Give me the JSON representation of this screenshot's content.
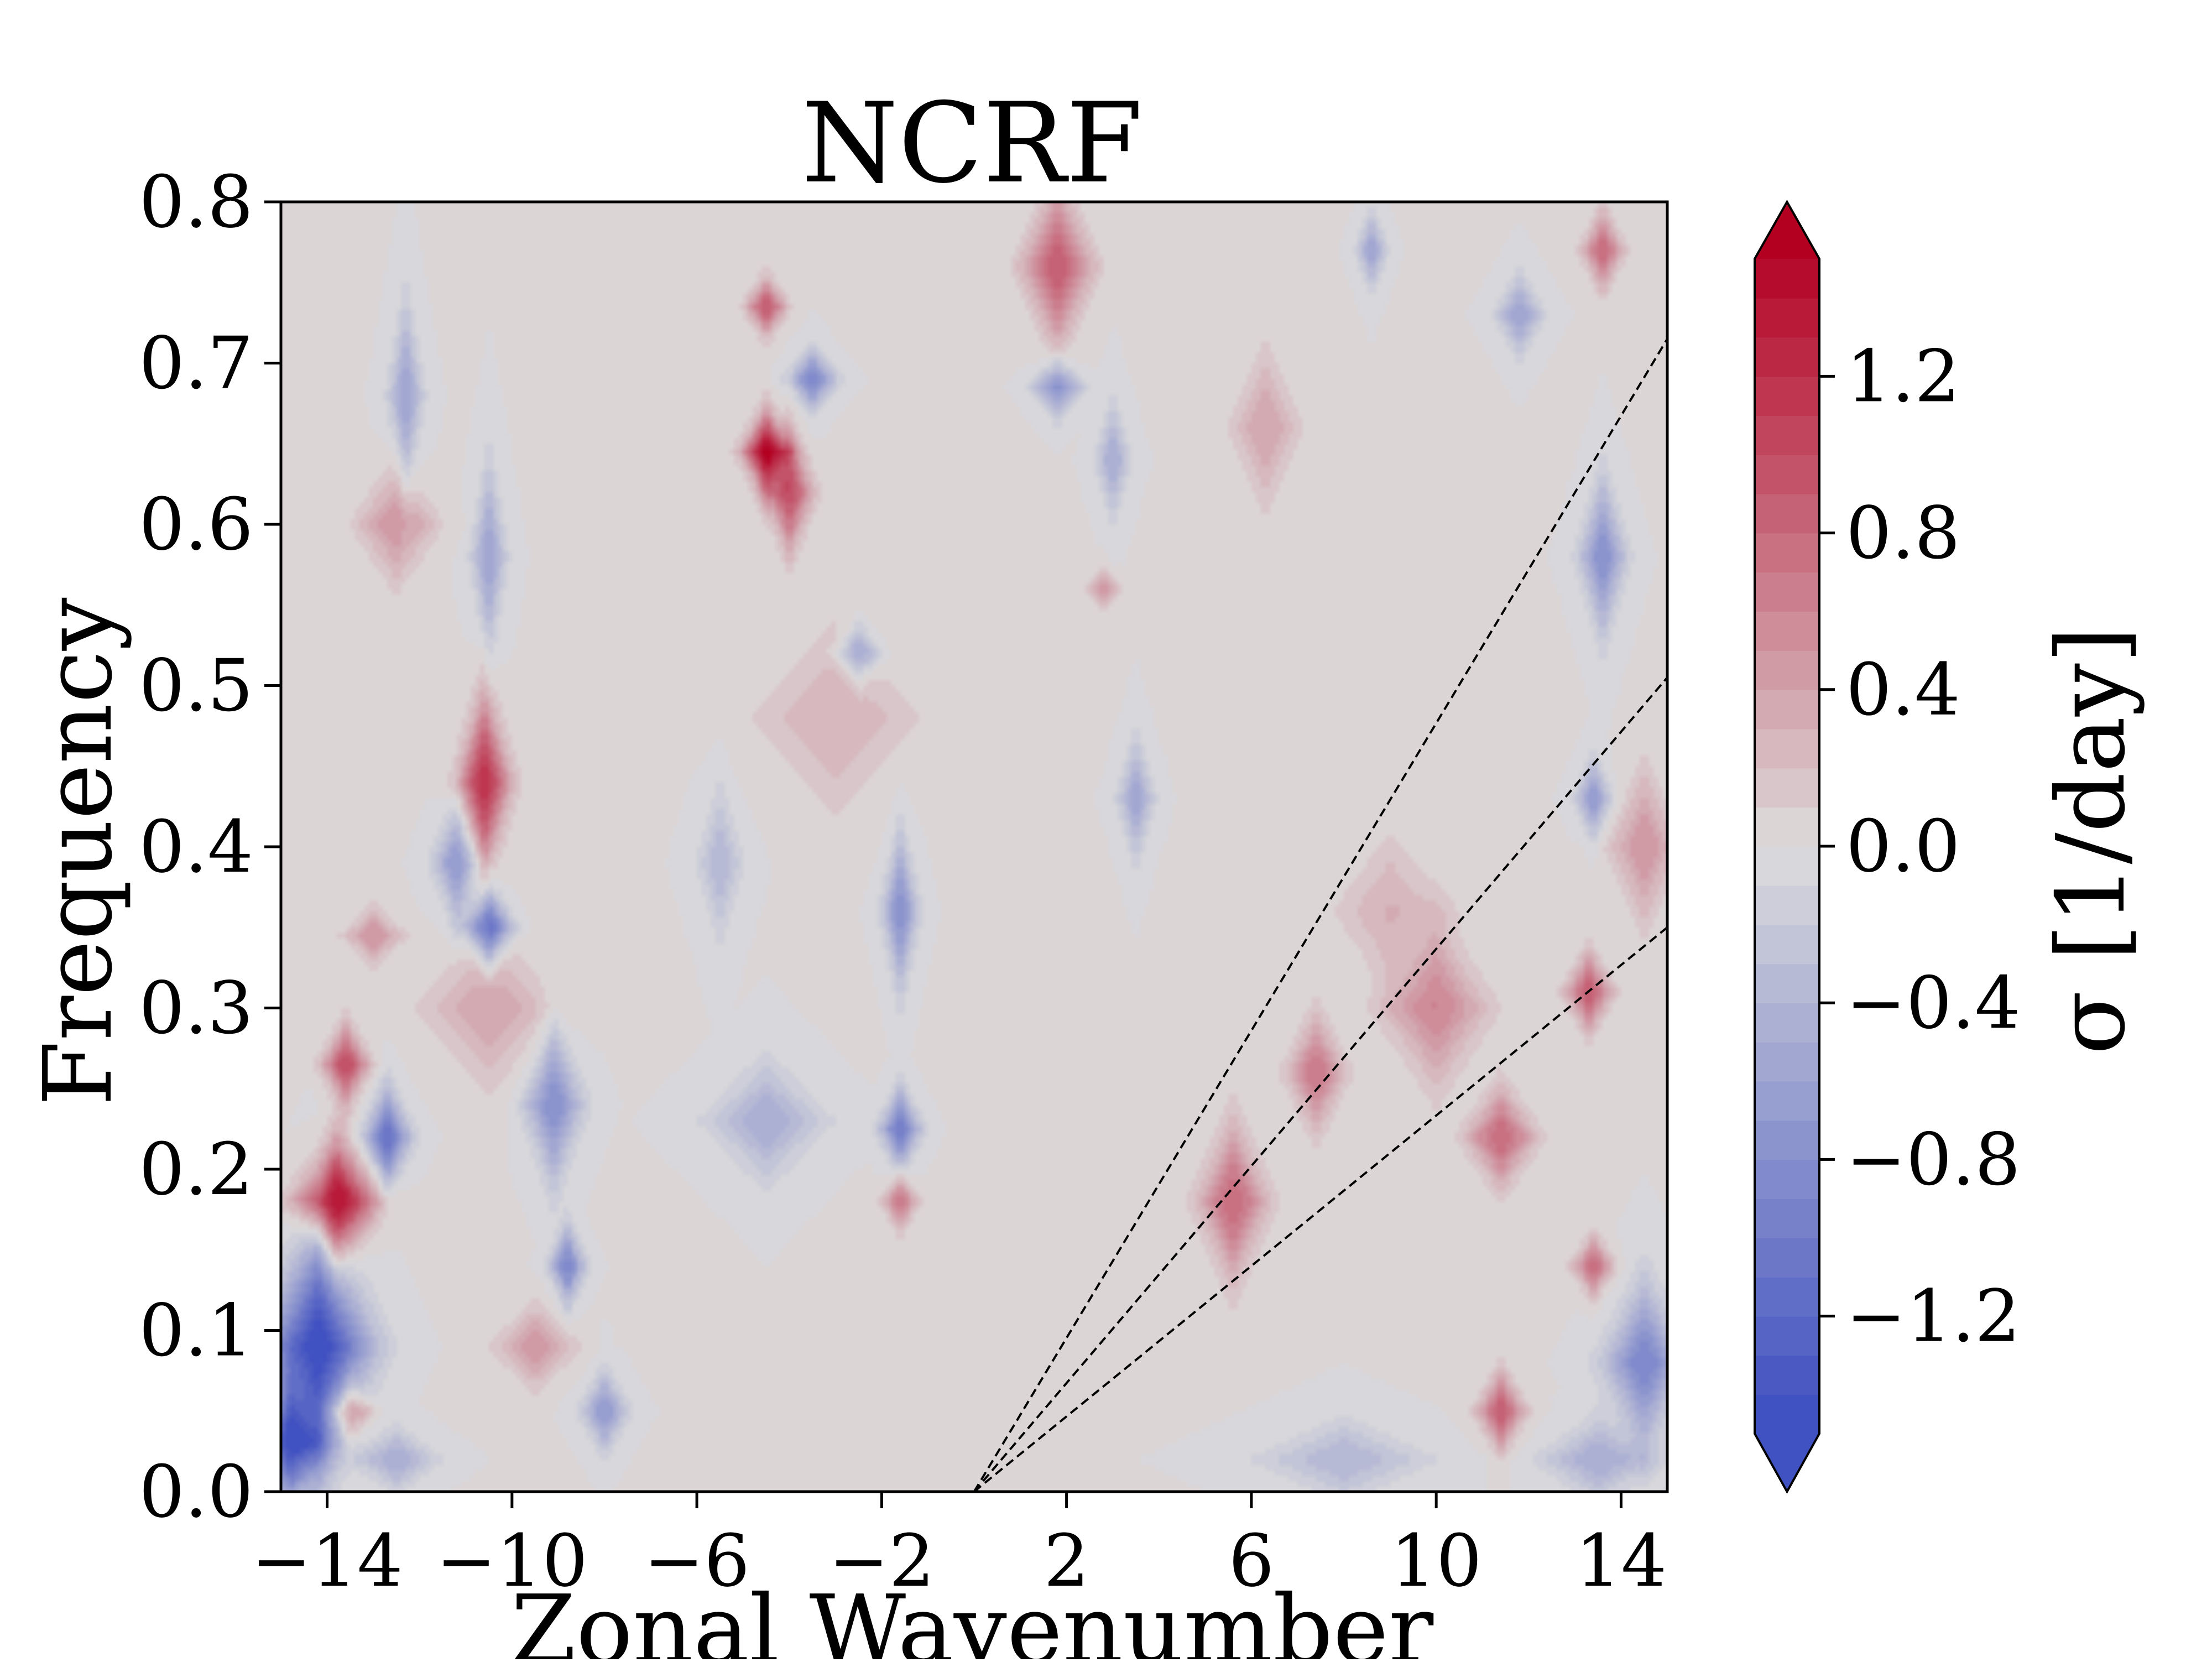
{
  "chart_data": {
    "type": "heatmap",
    "subtype": "filled-contour",
    "title": "NCRF",
    "xlabel": "Zonal Wavenumber",
    "ylabel": "Frequency",
    "xlim": [
      -15,
      15
    ],
    "ylim": [
      0.0,
      0.8
    ],
    "x_ticks": [
      -14,
      -10,
      -6,
      -2,
      2,
      6,
      10,
      14
    ],
    "x_tick_labels": [
      "−14",
      "−10",
      "−6",
      "−2",
      "2",
      "6",
      "10",
      "14"
    ],
    "y_ticks": [
      0.0,
      0.1,
      0.2,
      0.3,
      0.4,
      0.5,
      0.6,
      0.7,
      0.8
    ],
    "y_tick_labels": [
      "0.0",
      "0.1",
      "0.2",
      "0.3",
      "0.4",
      "0.5",
      "0.6",
      "0.7",
      "0.8"
    ],
    "colormap": "coolwarm",
    "colorbar": {
      "label": "σ [1/day]",
      "range": [
        -1.5,
        1.5
      ],
      "extend": "both",
      "ticks": [
        -1.2,
        -0.8,
        -0.4,
        0.0,
        0.4,
        0.8,
        1.2
      ],
      "tick_labels": [
        "−1.2",
        "−0.8",
        "−0.4",
        "0.0",
        "0.4",
        "0.8",
        "1.2"
      ],
      "low_color": "#3b4cc0",
      "mid_color": "#dddcdc",
      "high_color": "#b40426"
    },
    "background_value": 0.0,
    "features": [
      {
        "x": -14.2,
        "y": 0.09,
        "value": -1.5,
        "sx": 0.9,
        "sy": 0.06
      },
      {
        "x": -14.8,
        "y": 0.03,
        "value": -1.3,
        "sx": 0.6,
        "sy": 0.03
      },
      {
        "x": -13.8,
        "y": 0.18,
        "value": 1.5,
        "sx": 0.7,
        "sy": 0.03
      },
      {
        "x": -13.6,
        "y": 0.265,
        "value": 1.0,
        "sx": 0.4,
        "sy": 0.02
      },
      {
        "x": -12.7,
        "y": 0.22,
        "value": -1.1,
        "sx": 0.4,
        "sy": 0.025
      },
      {
        "x": -13.5,
        "y": 0.05,
        "value": 0.7,
        "sx": 0.4,
        "sy": 0.015
      },
      {
        "x": -10.6,
        "y": 0.44,
        "value": 1.2,
        "sx": 0.45,
        "sy": 0.045
      },
      {
        "x": -10.5,
        "y": 0.35,
        "value": -1.2,
        "sx": 0.4,
        "sy": 0.02
      },
      {
        "x": -11.2,
        "y": 0.39,
        "value": -0.7,
        "sx": 0.4,
        "sy": 0.03
      },
      {
        "x": -10.5,
        "y": 0.58,
        "value": -0.6,
        "sx": 0.3,
        "sy": 0.05
      },
      {
        "x": -12.3,
        "y": 0.68,
        "value": -0.6,
        "sx": 0.3,
        "sy": 0.05
      },
      {
        "x": -12.5,
        "y": 0.6,
        "value": 0.5,
        "sx": 0.7,
        "sy": 0.03
      },
      {
        "x": -10.5,
        "y": 0.3,
        "value": 0.4,
        "sx": 1.2,
        "sy": 0.04
      },
      {
        "x": -9.1,
        "y": 0.24,
        "value": -0.8,
        "sx": 0.5,
        "sy": 0.04
      },
      {
        "x": -8.8,
        "y": 0.14,
        "value": -0.9,
        "sx": 0.3,
        "sy": 0.02
      },
      {
        "x": -9.5,
        "y": 0.09,
        "value": 0.5,
        "sx": 0.7,
        "sy": 0.02
      },
      {
        "x": -8.0,
        "y": 0.05,
        "value": -0.7,
        "sx": 0.4,
        "sy": 0.02
      },
      {
        "x": -13.0,
        "y": 0.345,
        "value": 0.5,
        "sx": 0.5,
        "sy": 0.015
      },
      {
        "x": -4.5,
        "y": 0.645,
        "value": 1.5,
        "sx": 0.4,
        "sy": 0.02
      },
      {
        "x": -4.0,
        "y": 0.62,
        "value": 1.0,
        "sx": 0.4,
        "sy": 0.03
      },
      {
        "x": -4.5,
        "y": 0.735,
        "value": 0.9,
        "sx": 0.35,
        "sy": 0.015
      },
      {
        "x": -3.5,
        "y": 0.69,
        "value": -0.9,
        "sx": 0.4,
        "sy": 0.015
      },
      {
        "x": -3.0,
        "y": 0.48,
        "value": 0.3,
        "sx": 1.5,
        "sy": 0.05
      },
      {
        "x": -2.5,
        "y": 0.52,
        "value": -0.6,
        "sx": 0.4,
        "sy": 0.015
      },
      {
        "x": -1.6,
        "y": 0.36,
        "value": -0.8,
        "sx": 0.3,
        "sy": 0.04
      },
      {
        "x": -1.6,
        "y": 0.225,
        "value": -1.0,
        "sx": 0.35,
        "sy": 0.02
      },
      {
        "x": -1.6,
        "y": 0.18,
        "value": 0.7,
        "sx": 0.3,
        "sy": 0.015
      },
      {
        "x": -4.5,
        "y": 0.23,
        "value": -0.5,
        "sx": 1.0,
        "sy": 0.03
      },
      {
        "x": -5.5,
        "y": 0.39,
        "value": -0.4,
        "sx": 0.4,
        "sy": 0.04
      },
      {
        "x": 1.8,
        "y": 0.76,
        "value": 0.9,
        "sx": 0.6,
        "sy": 0.04
      },
      {
        "x": 1.8,
        "y": 0.685,
        "value": -0.8,
        "sx": 0.4,
        "sy": 0.015
      },
      {
        "x": 3.0,
        "y": 0.64,
        "value": -0.5,
        "sx": 0.3,
        "sy": 0.03
      },
      {
        "x": 3.5,
        "y": 0.43,
        "value": -0.6,
        "sx": 0.3,
        "sy": 0.03
      },
      {
        "x": 2.8,
        "y": 0.56,
        "value": 0.5,
        "sx": 0.3,
        "sy": 0.01
      },
      {
        "x": 5.6,
        "y": 0.18,
        "value": 0.8,
        "sx": 0.6,
        "sy": 0.04
      },
      {
        "x": 7.4,
        "y": 0.26,
        "value": 0.7,
        "sx": 0.5,
        "sy": 0.03
      },
      {
        "x": 10.0,
        "y": 0.3,
        "value": 0.6,
        "sx": 0.9,
        "sy": 0.04
      },
      {
        "x": 11.4,
        "y": 0.22,
        "value": 0.8,
        "sx": 0.6,
        "sy": 0.025
      },
      {
        "x": 13.3,
        "y": 0.31,
        "value": 0.9,
        "sx": 0.4,
        "sy": 0.02
      },
      {
        "x": 13.4,
        "y": 0.14,
        "value": 0.8,
        "sx": 0.35,
        "sy": 0.015
      },
      {
        "x": 11.4,
        "y": 0.05,
        "value": 0.9,
        "sx": 0.4,
        "sy": 0.02
      },
      {
        "x": 14.5,
        "y": 0.08,
        "value": -0.9,
        "sx": 0.7,
        "sy": 0.04
      },
      {
        "x": 13.6,
        "y": 0.58,
        "value": -0.8,
        "sx": 0.4,
        "sy": 0.04
      },
      {
        "x": 13.4,
        "y": 0.43,
        "value": -0.7,
        "sx": 0.3,
        "sy": 0.02
      },
      {
        "x": 14.5,
        "y": 0.4,
        "value": 0.5,
        "sx": 0.6,
        "sy": 0.04
      },
      {
        "x": 13.6,
        "y": 0.77,
        "value": 0.8,
        "sx": 0.35,
        "sy": 0.02
      },
      {
        "x": 11.8,
        "y": 0.73,
        "value": -0.6,
        "sx": 0.4,
        "sy": 0.02
      },
      {
        "x": 8.6,
        "y": 0.77,
        "value": -0.6,
        "sx": 0.25,
        "sy": 0.02
      },
      {
        "x": 6.3,
        "y": 0.66,
        "value": 0.4,
        "sx": 0.6,
        "sy": 0.04
      },
      {
        "x": 9.0,
        "y": 0.36,
        "value": 0.3,
        "sx": 1.0,
        "sy": 0.04
      },
      {
        "x": 8.0,
        "y": 0.02,
        "value": -0.4,
        "sx": 1.5,
        "sy": 0.02
      },
      {
        "x": 13.5,
        "y": 0.02,
        "value": -0.5,
        "sx": 1.0,
        "sy": 0.02
      },
      {
        "x": -12.5,
        "y": 0.02,
        "value": -0.5,
        "sx": 0.7,
        "sy": 0.015
      }
    ],
    "lines": [
      {
        "style": "dashed",
        "x": [
          0,
          15
        ],
        "y": [
          0.0,
          0.715
        ]
      },
      {
        "style": "dashed",
        "x": [
          0,
          15
        ],
        "y": [
          0.0,
          0.505
        ]
      },
      {
        "style": "dashed",
        "x": [
          0,
          15
        ],
        "y": [
          0.0,
          0.35
        ]
      }
    ]
  }
}
